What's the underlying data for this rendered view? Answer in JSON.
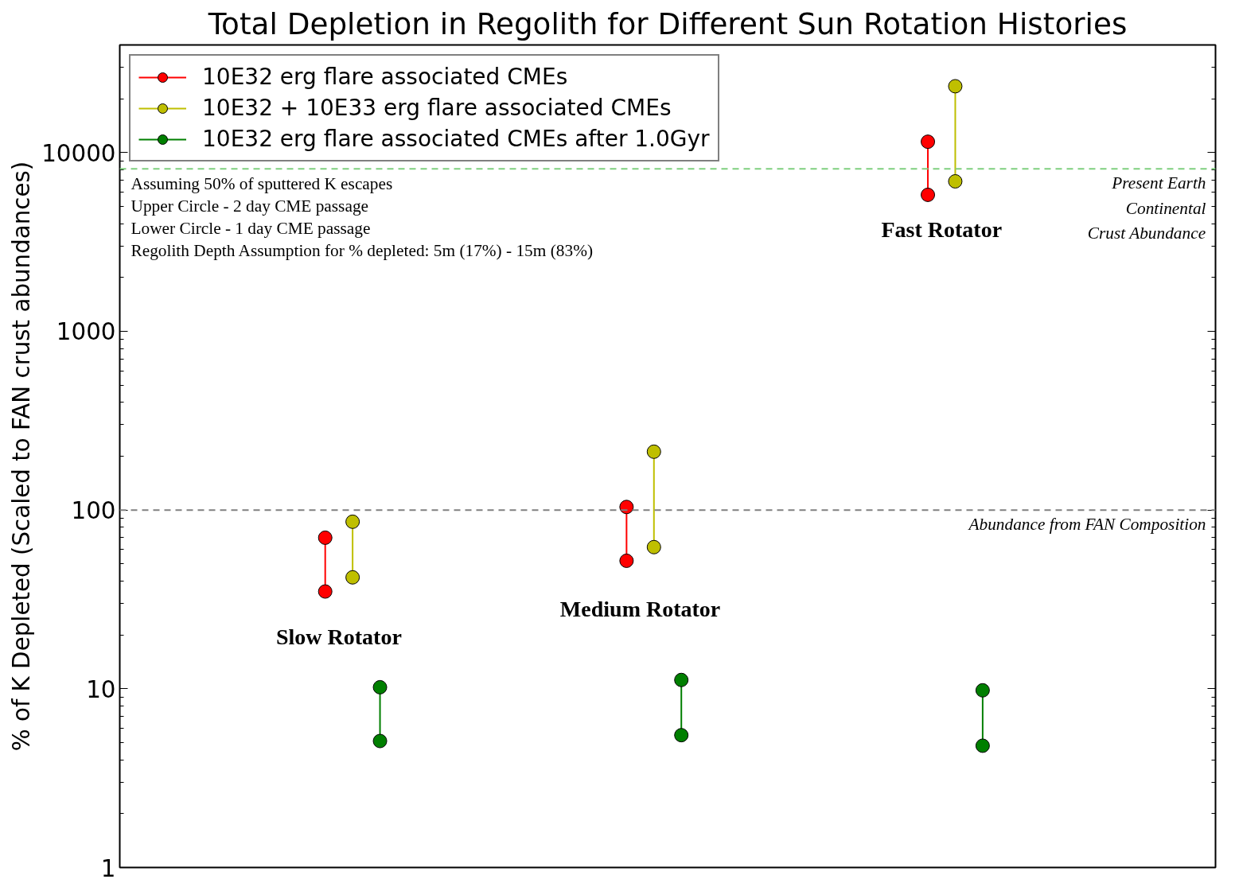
{
  "chart_data": {
    "type": "scatter",
    "title": "Total Depletion in Regolith for Different Sun Rotation Histories",
    "ylabel": "% of K Depleted (Scaled to FAN crust abundances)",
    "log": "y",
    "ylim": [
      1,
      40000
    ],
    "yticks": [
      1,
      10,
      100,
      1000,
      10000
    ],
    "categories": [
      null,
      null,
      null,
      null,
      null,
      null,
      null,
      null,
      null,
      null,
      null,
      null,
      null,
      null,
      null,
      null,
      null,
      null,
      null,
      null,
      null,
      null,
      null,
      null,
      null,
      null,
      null,
      null,
      null,
      null,
      null,
      null,
      null,
      null,
      null,
      null,
      null,
      null,
      null,
      null
    ],
    "tick_labels": "y",
    "legend": "top left",
    "marker": "circle",
    "series": [
      {
        "name": "10E32 erg flare associated CMEs",
        "color": "#ff0000",
        "values": [
          null,
          null,
          null,
          null,
          null,
          null,
          null,
          70,
          null,
          null,
          null,
          null,
          null,
          null,
          null,
          null,
          null,
          null,
          104,
          null,
          null,
          null,
          null,
          null,
          null,
          null,
          null,
          null,
          null,
          11500,
          null,
          null,
          null,
          null,
          null,
          null,
          null,
          null,
          null,
          null
        ]
      },
      {
        "color": "#ff0000",
        "values": [
          null,
          null,
          null,
          null,
          null,
          null,
          null,
          35,
          null,
          null,
          null,
          null,
          null,
          null,
          null,
          null,
          null,
          null,
          52,
          null,
          null,
          null,
          null,
          null,
          null,
          null,
          null,
          null,
          null,
          5800,
          null,
          null,
          null,
          null,
          null,
          null,
          null,
          null,
          null,
          null
        ]
      },
      {
        "name": "10E32 + 10E33 erg flare associated CMEs",
        "color": "#bfbf00",
        "values": [
          null,
          null,
          null,
          null,
          null,
          null,
          null,
          null,
          86,
          null,
          null,
          null,
          null,
          null,
          null,
          null,
          null,
          null,
          null,
          212,
          null,
          null,
          null,
          null,
          null,
          null,
          null,
          null,
          null,
          null,
          23500,
          null,
          null,
          null,
          null,
          null,
          null,
          null,
          null,
          null
        ]
      },
      {
        "color": "#bfbf00",
        "values": [
          null,
          null,
          null,
          null,
          null,
          null,
          null,
          null,
          42,
          null,
          null,
          null,
          null,
          null,
          null,
          null,
          null,
          null,
          null,
          62,
          null,
          null,
          null,
          null,
          null,
          null,
          null,
          null,
          null,
          null,
          6900,
          null,
          null,
          null,
          null,
          null,
          null,
          null,
          null,
          null
        ]
      },
      {
        "name": "10E32 erg flare associated CMEs after 1.0Gyr",
        "color": "#007f00",
        "values": [
          null,
          null,
          null,
          null,
          null,
          null,
          null,
          null,
          null,
          10.2,
          null,
          null,
          null,
          null,
          null,
          null,
          null,
          null,
          null,
          null,
          11.2,
          null,
          null,
          null,
          null,
          null,
          null,
          null,
          null,
          null,
          null,
          9.8,
          null,
          null,
          null,
          null,
          null,
          null,
          null,
          null
        ]
      },
      {
        "color": "#007f00",
        "values": [
          null,
          null,
          null,
          null,
          null,
          null,
          null,
          null,
          null,
          5.1,
          null,
          null,
          null,
          null,
          null,
          null,
          null,
          null,
          null,
          null,
          5.5,
          null,
          null,
          null,
          null,
          null,
          null,
          null,
          null,
          null,
          null,
          4.8,
          null,
          null,
          null,
          null,
          null,
          null,
          null,
          null
        ]
      }
    ],
    "ref_lines": [
      {
        "axis": "y",
        "value": 100,
        "label": "Abundance from FAN Composition",
        "color": "#808080",
        "line_style": "dashed"
      },
      {
        "axis": "y",
        "value": 8100,
        "label": "Present Earth Continental Crust Abundance",
        "color": "#7fcf7f",
        "line_style": "dashed"
      }
    ],
    "annotations": [
      "Assuming 50% of sputtered K escapes",
      "Upper Circle - 2 day CME passage",
      "Lower Circle - 1 day CME passage",
      "Regolith Depth Assumption for % depleted: 5m (17%) - 15m (83%)",
      "Slow Rotator",
      "Medium Rotator",
      "Fast Rotator"
    ]
  }
}
